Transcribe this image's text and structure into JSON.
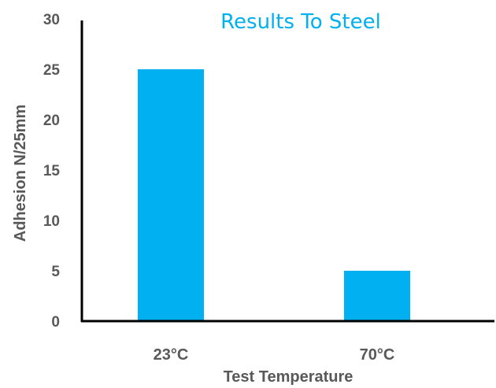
{
  "chart_data": {
    "type": "bar",
    "title": "Results To Steel",
    "xlabel": "Test Temperature",
    "ylabel": "Adhesion N/25mm",
    "categories": [
      "23°C",
      "70°C"
    ],
    "values": [
      25,
      5
    ],
    "ylim": [
      0,
      30
    ],
    "yticks": [
      "0",
      "5",
      "10",
      "15",
      "20",
      "25",
      "30"
    ],
    "grid": false,
    "legend": "none"
  },
  "colors": {
    "bar": "#00b0f0",
    "title": "#00b0f0",
    "text": "#595959",
    "axis": "#000000"
  }
}
